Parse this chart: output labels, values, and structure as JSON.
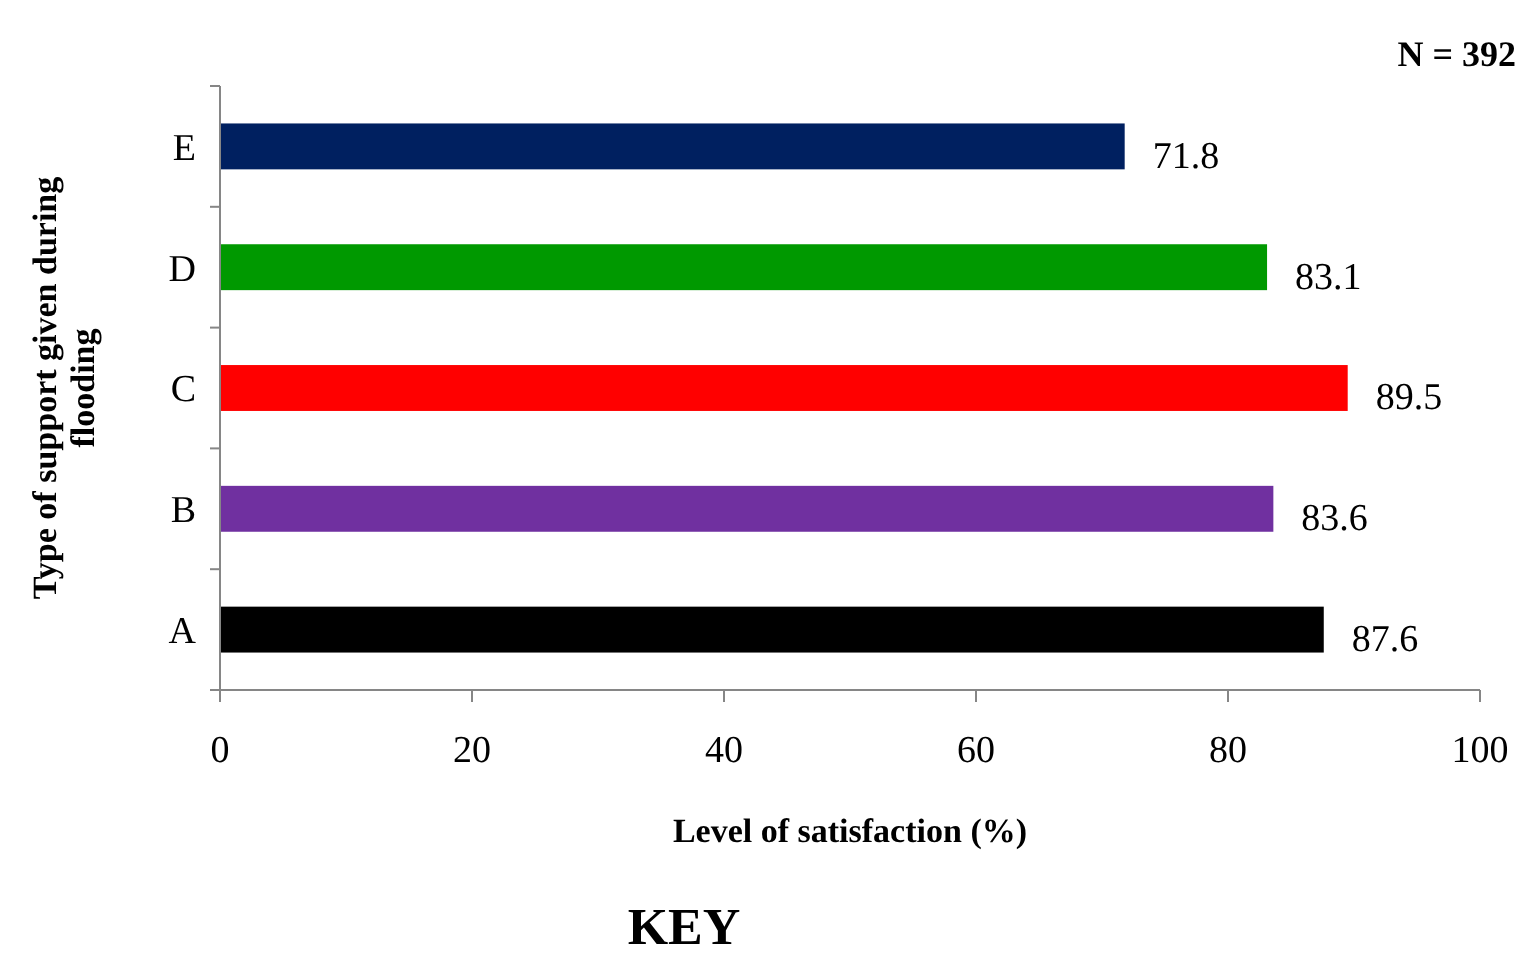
{
  "chart_data": {
    "type": "bar",
    "orientation": "horizontal",
    "xlabel": "Level of satisfaction (%)",
    "ylabel": "Type of support given during flooding",
    "categories": [
      "E",
      "D",
      "C",
      "B",
      "A"
    ],
    "values": [
      71.8,
      83.1,
      89.5,
      83.6,
      87.6
    ],
    "colors": [
      "#002060",
      "#009900",
      "#ff0000",
      "#7030a0",
      "#000000"
    ],
    "xlim": [
      0,
      100
    ],
    "xticks": [
      0,
      20,
      40,
      60,
      80,
      100
    ],
    "data_labels": true,
    "grid": false,
    "annotations": [
      "N = 392",
      "KEY"
    ]
  }
}
